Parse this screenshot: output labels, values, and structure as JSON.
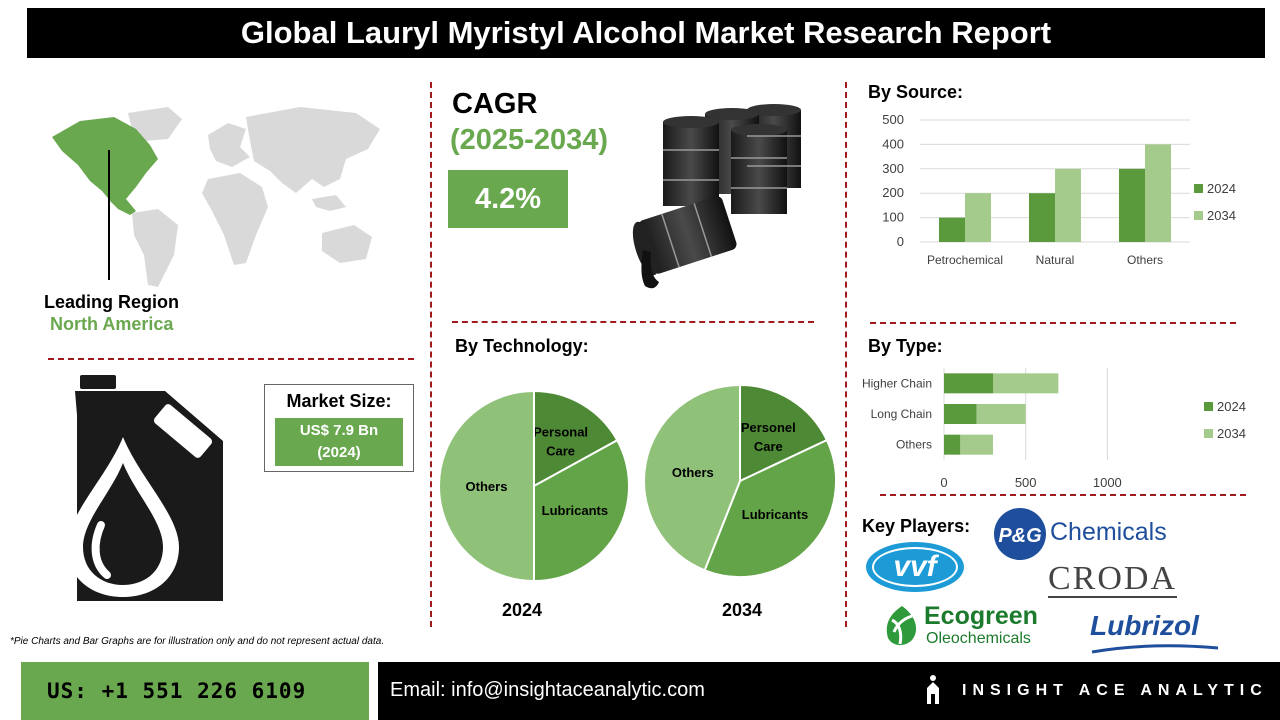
{
  "header": {
    "title": "Global Lauryl Myristyl Alcohol Market Research Report"
  },
  "leading_region": {
    "label": "Leading Region",
    "value": "North America"
  },
  "cagr": {
    "title": "CAGR",
    "years": "(2025-2034)",
    "value": "4.2%"
  },
  "market_size": {
    "title": "Market Size:",
    "value": "US$ 7.9 Bn",
    "year": "(2024)"
  },
  "footnote": "*Pie Charts and Bar Graphs are for illustration only and do not represent actual data.",
  "key_players": {
    "title": "Key Players:",
    "logos": [
      "P&G Chemicals",
      "vvf",
      "CRODA",
      "Ecogreen",
      "Oleochemicals",
      "Lubrizol"
    ]
  },
  "footer": {
    "phone": "US: +1 551 226 6109",
    "email": "Email: info@insightaceanalytic.com",
    "brand": "INSIGHT ACE ANALYTIC"
  },
  "colors": {
    "dark_green": "#5b9a3c",
    "light_green": "#a4cb8b",
    "pie_dark": "#4e8a35",
    "pie_mid": "#63a448",
    "pie_light": "#8fc179",
    "accent": "#6aa84f",
    "divider": "#a01b1b"
  },
  "chart_data": [
    {
      "type": "bar",
      "title": "By Source:",
      "categories": [
        "Petrochemical",
        "Natural",
        "Others"
      ],
      "series": [
        {
          "name": "2024",
          "values": [
            100,
            200,
            300
          ]
        },
        {
          "name": "2034",
          "values": [
            200,
            300,
            400
          ]
        }
      ],
      "ylim": [
        0,
        500
      ],
      "yticks": [
        "500",
        "400",
        "300",
        "200",
        "100",
        "0"
      ],
      "grid": true,
      "legend": "right"
    },
    {
      "type": "bar",
      "orientation": "horizontal",
      "stacked": true,
      "title": "By Type:",
      "categories": [
        "Higher Chain",
        "Long Chain",
        "Others"
      ],
      "series": [
        {
          "name": "2024",
          "values": [
            300,
            200,
            100
          ]
        },
        {
          "name": "2034",
          "values": [
            400,
            300,
            200
          ]
        }
      ],
      "xlim": [
        0,
        1200
      ],
      "xticks": [
        "0",
        "500",
        "1000"
      ],
      "grid": true,
      "legend": "right"
    },
    {
      "type": "pie",
      "title": "By Technology:",
      "charts": [
        {
          "year": "2024",
          "slices": [
            {
              "label": "Personal Care",
              "lines": [
                "Personal",
                "Care"
              ],
              "value": 17
            },
            {
              "label": "Lubricants",
              "lines": [
                "Lubricants"
              ],
              "value": 33
            },
            {
              "label": "Others",
              "lines": [
                "Others"
              ],
              "value": 50
            }
          ]
        },
        {
          "year": "2034",
          "slices": [
            {
              "label": "Personel Care",
              "lines": [
                "Personel",
                "Care"
              ],
              "value": 18
            },
            {
              "label": "Lubricants",
              "lines": [
                "Lubricants"
              ],
              "value": 38
            },
            {
              "label": "Others",
              "lines": [
                "Others"
              ],
              "value": 44
            }
          ]
        }
      ]
    }
  ]
}
